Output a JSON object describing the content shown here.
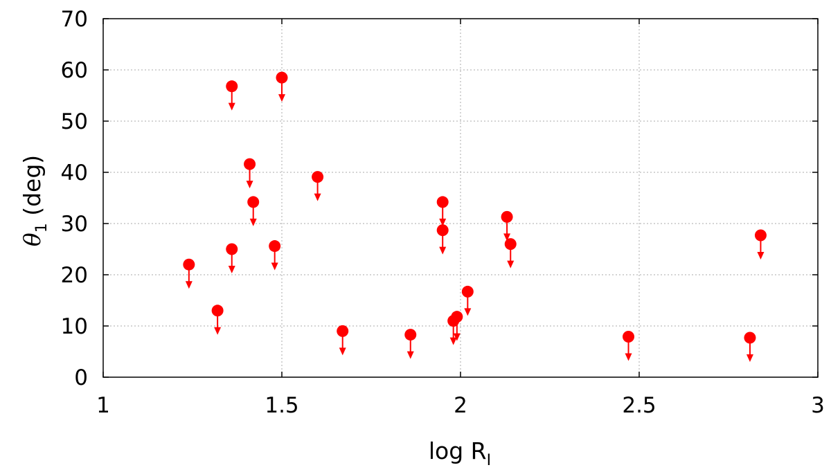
{
  "chart_data": {
    "type": "scatter",
    "title": "",
    "xlabel": {
      "main": "log R",
      "sub": "I"
    },
    "ylabel": {
      "symbol": "θ",
      "sub": "1",
      "unit": " (deg)"
    },
    "xlim": [
      1,
      3
    ],
    "ylim": [
      0,
      70
    ],
    "x_ticks": [
      1,
      1.5,
      2,
      2.5,
      3
    ],
    "x_tick_labels": [
      "1",
      "1.5",
      "2",
      "2.5",
      "3"
    ],
    "y_ticks": [
      0,
      10,
      20,
      30,
      40,
      50,
      60,
      70
    ],
    "y_tick_labels": [
      "0",
      "10",
      "20",
      "30",
      "40",
      "50",
      "60",
      "70"
    ],
    "grid": true,
    "marker": "circle with downward arrow (upper limit)",
    "marker_color": "#ff0000",
    "points": [
      {
        "x": 1.24,
        "y": 22.0
      },
      {
        "x": 1.32,
        "y": 13.0
      },
      {
        "x": 1.36,
        "y": 56.8
      },
      {
        "x": 1.36,
        "y": 25.0
      },
      {
        "x": 1.41,
        "y": 41.6
      },
      {
        "x": 1.42,
        "y": 34.2
      },
      {
        "x": 1.48,
        "y": 25.6
      },
      {
        "x": 1.5,
        "y": 58.5
      },
      {
        "x": 1.6,
        "y": 39.1
      },
      {
        "x": 1.67,
        "y": 9.0
      },
      {
        "x": 1.86,
        "y": 8.3
      },
      {
        "x": 1.95,
        "y": 34.2
      },
      {
        "x": 1.95,
        "y": 28.7
      },
      {
        "x": 1.98,
        "y": 11.0
      },
      {
        "x": 1.99,
        "y": 11.8
      },
      {
        "x": 2.02,
        "y": 16.7
      },
      {
        "x": 2.13,
        "y": 31.3
      },
      {
        "x": 2.14,
        "y": 26.0
      },
      {
        "x": 2.47,
        "y": 7.9
      },
      {
        "x": 2.81,
        "y": 7.7
      },
      {
        "x": 2.84,
        "y": 27.7
      }
    ]
  }
}
